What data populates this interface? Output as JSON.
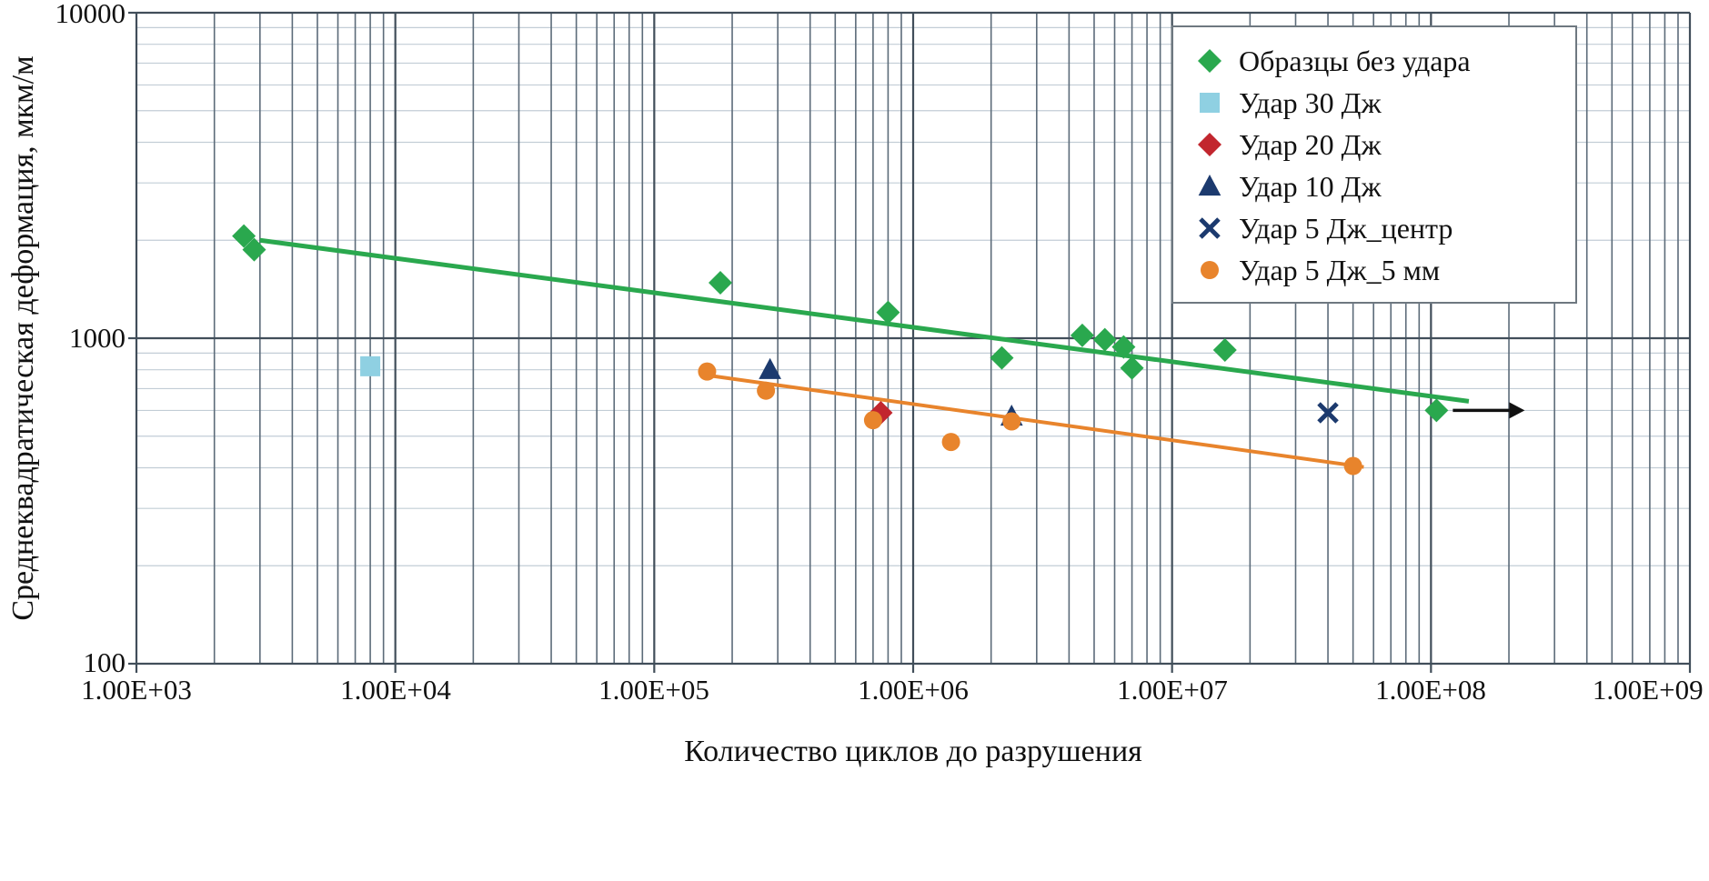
{
  "chart_data": {
    "type": "scatter",
    "x_axis": {
      "label": "Количество циклов до разрушения",
      "scale": "log",
      "min": 1000,
      "max": 1000000000,
      "tick_labels": [
        "1.00E+03",
        "1.00E+04",
        "1.00E+05",
        "1.00E+06",
        "1.00E+07",
        "1.00E+08",
        "1.00E+09"
      ]
    },
    "y_axis": {
      "label": "Среднеквадратическая деформация, мкм/м",
      "scale": "log",
      "min": 100,
      "max": 10000,
      "tick_labels": [
        "10000",
        "1000",
        "100"
      ]
    },
    "grid": true,
    "legend_position": "top-right",
    "colors": {
      "grid_major": "#414e5a",
      "grid_minor_vertical": "#5c6b79",
      "grid_minor_horizontal": "#c2cdd6",
      "arrow": "#111111",
      "legend_border": "#6e7880"
    },
    "series": [
      {
        "name": "Образцы без удара",
        "marker": "diamond",
        "color": "#2aa84e",
        "points": [
          [
            2600,
            2060
          ],
          [
            2850,
            1870
          ],
          [
            180000,
            1480
          ],
          [
            800000,
            1200
          ],
          [
            2200000,
            870
          ],
          [
            4500000,
            1020
          ],
          [
            5500000,
            990
          ],
          [
            6500000,
            940
          ],
          [
            7000000,
            810
          ],
          [
            16000000,
            920
          ],
          [
            105000000,
            600
          ]
        ],
        "trendline": {
          "width": 5,
          "points": [
            [
              3000,
              2000
            ],
            [
              140000000,
              640
            ]
          ]
        },
        "runout_arrow_at": [
          105000000,
          600
        ]
      },
      {
        "name": "Удар 30 Дж",
        "marker": "square",
        "color": "#8fd0e2",
        "points": [
          [
            8000,
            820
          ]
        ]
      },
      {
        "name": "Удар 20 Дж",
        "marker": "diamond",
        "color": "#c2262e",
        "points": [
          [
            750000,
            590
          ]
        ]
      },
      {
        "name": "Удар 10 Дж",
        "marker": "triangle",
        "color": "#1c3a6e",
        "points": [
          [
            280000,
            800
          ],
          [
            2400000,
            575
          ]
        ]
      },
      {
        "name": "Удар 5 Дж_центр",
        "marker": "x",
        "color": "#1c3a6e",
        "points": [
          [
            40000000,
            590
          ]
        ]
      },
      {
        "name": "Удар 5 Дж_5 мм",
        "marker": "circle",
        "color": "#e8842c",
        "points": [
          [
            160000,
            790
          ],
          [
            270000,
            690
          ],
          [
            700000,
            560
          ],
          [
            1400000,
            480
          ],
          [
            2400000,
            555
          ],
          [
            50000000,
            405
          ]
        ],
        "trendline": {
          "width": 4,
          "points": [
            [
              150000,
              775
            ],
            [
              55000000,
              402
            ]
          ]
        }
      }
    ]
  }
}
